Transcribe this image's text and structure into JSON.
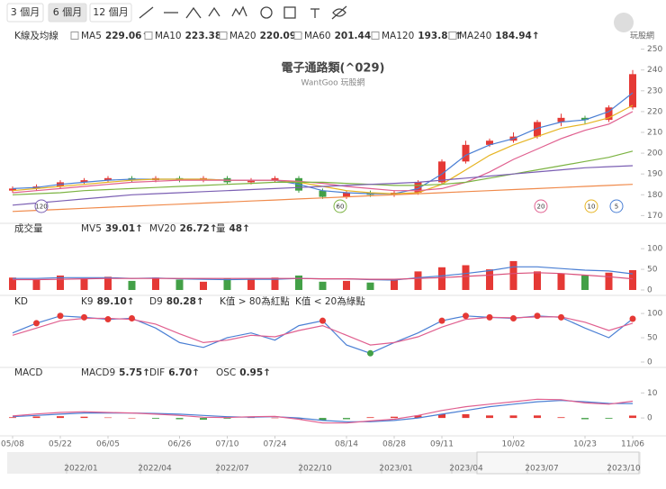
{
  "toolbar": {
    "ranges": [
      "3 個月",
      "6 個月",
      "12 個月"
    ]
  },
  "logo": "玩股網",
  "chart_data": [
    {
      "type": "candlestick",
      "title": "電子通路類(^029)",
      "subtitle": "WantGoo 玩股網",
      "categories": [
        "05/08",
        null,
        "05/22",
        null,
        "06/05",
        null,
        null,
        "06/26",
        null,
        "07/10",
        null,
        "07/24",
        null,
        null,
        "08/14",
        null,
        "08/28",
        null,
        "09/11",
        null,
        null,
        "10/02",
        null,
        null,
        "10/23",
        null,
        "11/06"
      ],
      "up_color": "#e53935",
      "down_color": "#43a047",
      "candles": {
        "name": "K線及均線",
        "open": [
          182,
          183,
          184,
          186,
          187,
          188,
          187,
          188,
          187,
          188,
          186,
          187,
          188,
          182,
          179,
          181,
          180,
          181,
          186,
          196,
          204,
          206,
          208,
          215,
          217,
          216,
          222
        ],
        "high": [
          184,
          185,
          187,
          188,
          189,
          189,
          189,
          189,
          189,
          189,
          188,
          189,
          189,
          183,
          182,
          182,
          182,
          187,
          197,
          206,
          207,
          210,
          216,
          219,
          218,
          223,
          240
        ],
        "low": [
          181,
          182,
          183,
          185,
          186,
          186,
          186,
          186,
          186,
          185,
          185,
          186,
          181,
          178,
          178,
          179,
          179,
          180,
          185,
          195,
          203,
          205,
          207,
          213,
          214,
          215,
          221
        ],
        "close": [
          183,
          184,
          186,
          187,
          188,
          187,
          188,
          187,
          188,
          186,
          187,
          188,
          182,
          179,
          181,
          180,
          181,
          186,
          196,
          204,
          206,
          208,
          215,
          217,
          216,
          222,
          238
        ]
      },
      "series": [
        {
          "name": "MA5",
          "label": "229.06↑",
          "color": "#4a7fd4",
          "values": [
            183,
            183.5,
            185,
            186,
            187,
            187.5,
            187.5,
            187.5,
            187.5,
            187,
            187,
            187,
            185,
            182,
            181,
            180.5,
            180.5,
            183,
            190,
            199,
            204,
            207,
            212,
            215,
            216,
            220,
            229
          ]
        },
        {
          "name": "MA10",
          "label": "223.38↑",
          "color": "#e6b422",
          "values": [
            182,
            183,
            184,
            185,
            186,
            187,
            187.5,
            187.5,
            187.5,
            187,
            187,
            187,
            186,
            184,
            182,
            181,
            180.5,
            181,
            185,
            192,
            199,
            204,
            208,
            212,
            214,
            217,
            223
          ]
        },
        {
          "name": "MA20",
          "label": "220.09↑",
          "color": "#e05f8f",
          "values": [
            181,
            182,
            183,
            184,
            185,
            186,
            186.5,
            187,
            187,
            187,
            187,
            187,
            186.5,
            185.5,
            184,
            183,
            182,
            182,
            183,
            186,
            191,
            197,
            202,
            207,
            211,
            214,
            220
          ]
        },
        {
          "name": "MA60",
          "label": "201.44↑",
          "color": "#7cb342",
          "values": [
            180,
            180.5,
            181,
            182,
            182.5,
            183,
            183.5,
            184,
            184.5,
            185,
            185.5,
            186,
            186,
            186,
            185.5,
            185,
            184.5,
            184.5,
            185,
            186,
            188,
            190,
            192,
            194,
            196,
            198,
            201
          ]
        },
        {
          "name": "MA120",
          "label": "193.82↑",
          "color": "#7b5fb3",
          "values": [
            175,
            176,
            177,
            178,
            179,
            180,
            180.5,
            181,
            181.5,
            182,
            182.5,
            183,
            183.5,
            184,
            184.5,
            185,
            185.5,
            186,
            187,
            188,
            189,
            190,
            191,
            192,
            193,
            193.5,
            194
          ]
        },
        {
          "name": "MA240",
          "label": "184.94↑",
          "color": "#f08a4b",
          "values": [
            172,
            172.5,
            173,
            173.5,
            174,
            174.5,
            175,
            175.5,
            176,
            176.5,
            177,
            177.5,
            178,
            178.5,
            179,
            179.5,
            180,
            180.5,
            181,
            181.5,
            182,
            182.5,
            183,
            183.5,
            184,
            184.5,
            185
          ]
        }
      ],
      "markers": [
        {
          "label": "120",
          "color": "#7b5fb3"
        },
        {
          "label": "60",
          "color": "#7cb342"
        },
        {
          "label": "20",
          "color": "#e05f8f"
        },
        {
          "label": "10",
          "color": "#e6b422"
        },
        {
          "label": "5",
          "color": "#4a7fd4"
        }
      ],
      "ylim": [
        168,
        252
      ],
      "yticks": [
        170,
        180,
        190,
        200,
        210,
        220,
        230,
        240,
        250
      ],
      "grid": false
    },
    {
      "type": "bar",
      "title": "成交量",
      "bar_colors": "price",
      "bars": {
        "name": "量",
        "label": "48↑",
        "values": [
          30,
          25,
          35,
          28,
          32,
          22,
          30,
          25,
          20,
          28,
          26,
          30,
          35,
          20,
          22,
          18,
          25,
          45,
          55,
          60,
          50,
          70,
          45,
          40,
          35,
          42,
          48
        ]
      },
      "series": [
        {
          "name": "MV5",
          "label": "39.01↑",
          "color": "#4a7fd4",
          "values": [
            28,
            28,
            30,
            30,
            30,
            28,
            29,
            27,
            26,
            25,
            26,
            26,
            28,
            27,
            27,
            25,
            24,
            30,
            34,
            40,
            47,
            56,
            56,
            52,
            48,
            46,
            39
          ]
        },
        {
          "name": "MV20",
          "label": "26.72↑",
          "color": "#d94f7a",
          "values": [
            25,
            25,
            26,
            27,
            28,
            28,
            28,
            28,
            28,
            28,
            28,
            28,
            28,
            27,
            27,
            26,
            26,
            28,
            30,
            33,
            36,
            40,
            42,
            40,
            36,
            32,
            27
          ]
        }
      ],
      "ylim": [
        0,
        120
      ],
      "yticks": [
        0,
        50,
        100
      ],
      "grid": false
    },
    {
      "type": "line",
      "title": "KD",
      "series": [
        {
          "name": "K9",
          "label": "89.10↑",
          "color": "#4a7fd4",
          "values": [
            60,
            80,
            95,
            92,
            88,
            90,
            70,
            40,
            30,
            50,
            60,
            45,
            75,
            85,
            35,
            18,
            40,
            60,
            85,
            95,
            92,
            90,
            95,
            92,
            70,
            50,
            89
          ]
        },
        {
          "name": "D9",
          "label": "80.28↑",
          "color": "#e05f8f",
          "values": [
            55,
            70,
            85,
            90,
            90,
            88,
            78,
            58,
            40,
            45,
            55,
            52,
            65,
            75,
            55,
            35,
            40,
            52,
            72,
            88,
            92,
            91,
            93,
            93,
            82,
            65,
            80
          ]
        }
      ],
      "notes": [
        "K值 > 80為紅點",
        "K值 < 20為綠點"
      ],
      "dot_above": 80,
      "dot_below": 20,
      "dot_colors": [
        "#e53935",
        "#43a047"
      ],
      "ylim": [
        0,
        115
      ],
      "yticks": [
        0,
        50,
        100
      ],
      "grid": false
    },
    {
      "type": "bar",
      "title": "MACD",
      "bar_colors": "sign",
      "series": [
        {
          "name": "MACD9",
          "label": "5.75↑",
          "color": "#4a7fd4",
          "values": [
            0.5,
            1,
            1.5,
            2,
            2,
            2,
            1.8,
            1.5,
            1,
            0.5,
            0.3,
            0.5,
            0,
            -1,
            -1.5,
            -1.5,
            -1,
            0,
            1.5,
            3,
            4.5,
            5.5,
            6.5,
            7,
            6.5,
            5.8,
            5.75
          ]
        },
        {
          "name": "DIF",
          "label": "6.70↑",
          "color": "#e05f8f",
          "values": [
            0.8,
            1.6,
            2.2,
            2.5,
            2.2,
            2,
            1.5,
            1,
            0.3,
            0.2,
            0.5,
            0.6,
            -0.5,
            -2,
            -2,
            -1.2,
            -0.5,
            1,
            3,
            4.5,
            5.5,
            6.5,
            7.5,
            7.3,
            6,
            5.5,
            6.7
          ]
        }
      ],
      "bars": {
        "name": "OSC",
        "label": "0.95↑",
        "values": [
          0.3,
          0.6,
          0.7,
          0.5,
          0.2,
          0,
          -0.3,
          -0.5,
          -0.7,
          -0.3,
          0.2,
          0.1,
          -0.5,
          -1,
          -0.5,
          0.3,
          0.5,
          1,
          1.5,
          1.5,
          1,
          1,
          1,
          0.3,
          -0.5,
          -0.3,
          0.95
        ]
      },
      "ylim": [
        -5,
        13
      ],
      "yticks": [
        0,
        10
      ],
      "grid": false
    }
  ],
  "navigator": {
    "labels": [
      "2022/01",
      "2022/04",
      "2022/07",
      "2022/10",
      "2023/01",
      "2023/04",
      "2023/07",
      "2023/10"
    ]
  }
}
